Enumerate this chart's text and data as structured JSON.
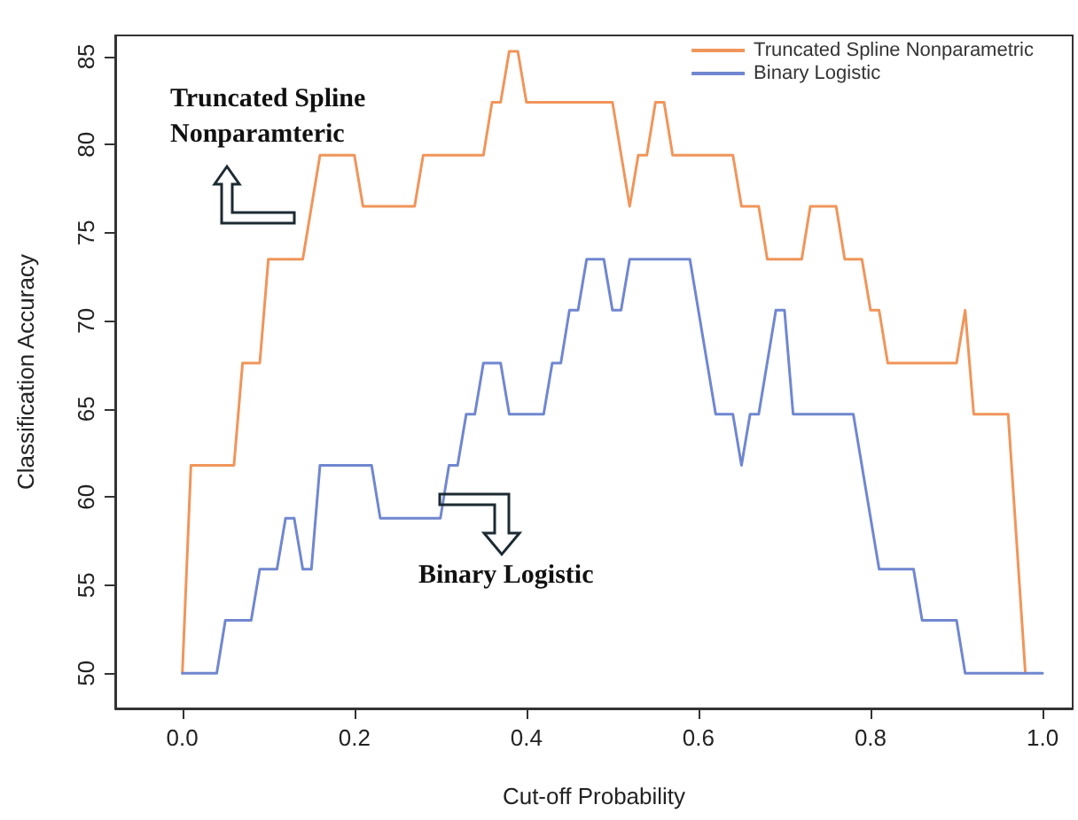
{
  "chart_data": {
    "type": "line",
    "xlabel": "Cut-off Probability",
    "ylabel": "Classification Accuracy",
    "annotations": [
      "Truncated Spline\nNonparamteric",
      "Binary Logistic"
    ],
    "xlim": [
      -0.078,
      1.035
    ],
    "ylim": [
      48,
      86.2
    ],
    "xticks": [
      {
        "value": 0,
        "label": "0.0"
      },
      {
        "value": 0.2,
        "label": "0.2"
      },
      {
        "value": 0.4,
        "label": "0.4"
      },
      {
        "value": 0.6,
        "label": "0.6"
      },
      {
        "value": 0.8,
        "label": "0.8"
      },
      {
        "value": 1,
        "label": "1.0"
      }
    ],
    "yticks": [
      50,
      55,
      60,
      65,
      70,
      75,
      80,
      85
    ],
    "grid": false,
    "legend": "top right",
    "marker": "none",
    "line_style": "solid",
    "series": [
      {
        "name": "Truncated Spline Nonparametric",
        "color": "#f0955a",
        "x": [
          0,
          0.01,
          0.06,
          0.07,
          0.09,
          0.1,
          0.14,
          0.16,
          0.2,
          0.21,
          0.27,
          0.28,
          0.35,
          0.36,
          0.37,
          0.38,
          0.39,
          0.4,
          0.5,
          0.52,
          0.53,
          0.54,
          0.55,
          0.56,
          0.57,
          0.64,
          0.65,
          0.67,
          0.68,
          0.72,
          0.73,
          0.76,
          0.77,
          0.79,
          0.8,
          0.81,
          0.82,
          0.9,
          0.91,
          0.92,
          0.96,
          0.98
        ],
        "values": [
          50,
          61.8,
          61.8,
          67.6,
          67.6,
          73.5,
          73.5,
          79.4,
          79.4,
          76.5,
          76.5,
          79.4,
          79.4,
          82.4,
          82.4,
          85.3,
          85.3,
          82.4,
          82.4,
          76.5,
          79.4,
          79.4,
          82.4,
          82.4,
          79.4,
          79.4,
          76.5,
          76.5,
          73.5,
          73.5,
          76.5,
          76.5,
          73.5,
          73.5,
          70.6,
          70.6,
          67.6,
          67.6,
          70.6,
          64.7,
          64.7,
          50
        ]
      },
      {
        "name": "Binary Logistic",
        "color": "#7087d0",
        "x": [
          0,
          0.04,
          0.05,
          0.08,
          0.09,
          0.11,
          0.12,
          0.13,
          0.14,
          0.15,
          0.16,
          0.22,
          0.23,
          0.3,
          0.31,
          0.32,
          0.33,
          0.34,
          0.35,
          0.37,
          0.38,
          0.42,
          0.43,
          0.44,
          0.45,
          0.46,
          0.47,
          0.49,
          0.5,
          0.51,
          0.52,
          0.59,
          0.62,
          0.64,
          0.65,
          0.66,
          0.67,
          0.69,
          0.7,
          0.71,
          0.78,
          0.81,
          0.85,
          0.86,
          0.9,
          0.91,
          1.0
        ],
        "values": [
          50,
          50,
          53,
          53,
          55.9,
          55.9,
          58.8,
          58.8,
          55.9,
          55.9,
          61.8,
          61.8,
          58.8,
          58.8,
          61.8,
          61.8,
          64.7,
          64.7,
          67.6,
          67.6,
          64.7,
          64.7,
          67.6,
          67.6,
          70.6,
          70.6,
          73.5,
          73.5,
          70.6,
          70.6,
          73.5,
          73.5,
          64.7,
          64.7,
          61.8,
          64.7,
          64.7,
          70.6,
          70.6,
          64.7,
          64.7,
          55.9,
          55.9,
          53,
          53,
          50,
          50
        ]
      }
    ]
  }
}
